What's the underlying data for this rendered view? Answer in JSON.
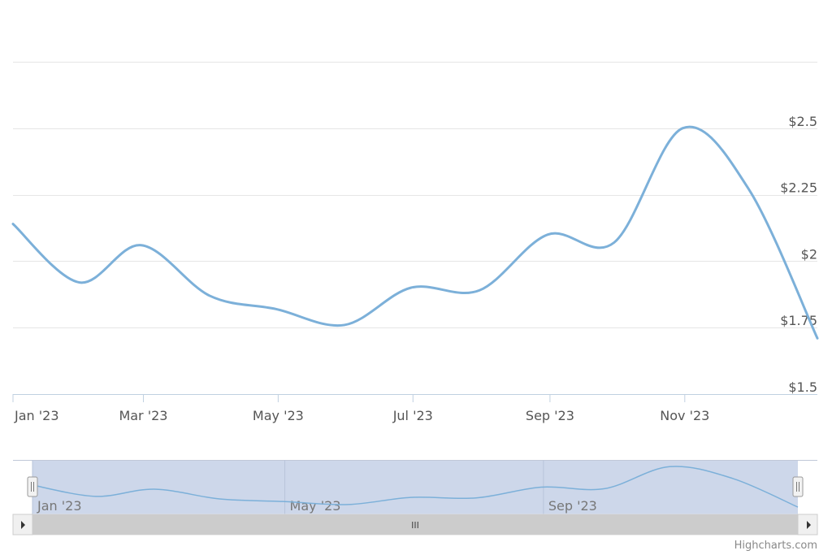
{
  "chart_data": {
    "type": "line",
    "title": "",
    "xlabel": "",
    "ylabel": "",
    "x": [
      "2023-01-01",
      "2023-01-31",
      "2023-02-28",
      "2023-03-31",
      "2023-04-30",
      "2023-05-31",
      "2023-06-30",
      "2023-07-31",
      "2023-08-31",
      "2023-09-30",
      "2023-10-31",
      "2023-11-30",
      "2023-12-31"
    ],
    "series": [
      {
        "name": "",
        "values": [
          2.14,
          1.92,
          2.06,
          1.87,
          1.82,
          1.76,
          1.9,
          1.89,
          2.1,
          2.07,
          2.5,
          2.27,
          1.71
        ],
        "color": "#7cb0d9"
      }
    ],
    "ylim": [
      1.5,
      2.75
    ],
    "yticks": [
      1.5,
      1.75,
      2,
      2.25,
      2.5
    ],
    "ytick_labels": [
      "$1.5",
      "$1.75",
      "$2",
      "$2.25",
      "$2.5"
    ],
    "xticks": [
      "2023-01-01",
      "2023-03-01",
      "2023-05-01",
      "2023-07-01",
      "2023-09-01",
      "2023-11-01"
    ],
    "xtick_labels": [
      "Jan '23",
      "Mar '23",
      "May '23",
      "Jul '23",
      "Sep '23",
      "Nov '23"
    ],
    "grid": true,
    "legend": "none",
    "navigator": {
      "tick_labels": [
        "Jan '23",
        "May '23",
        "Sep '23"
      ],
      "scrollbar_grip": "III"
    }
  },
  "credit": "Highcharts.com",
  "colors": {
    "line": "#7cb0d9",
    "grid": "#e6e6e6",
    "navigator_mask": "#cdd7ea",
    "scrollbar": "#cccccc",
    "scrollbar_track": "#f2f2f2"
  }
}
